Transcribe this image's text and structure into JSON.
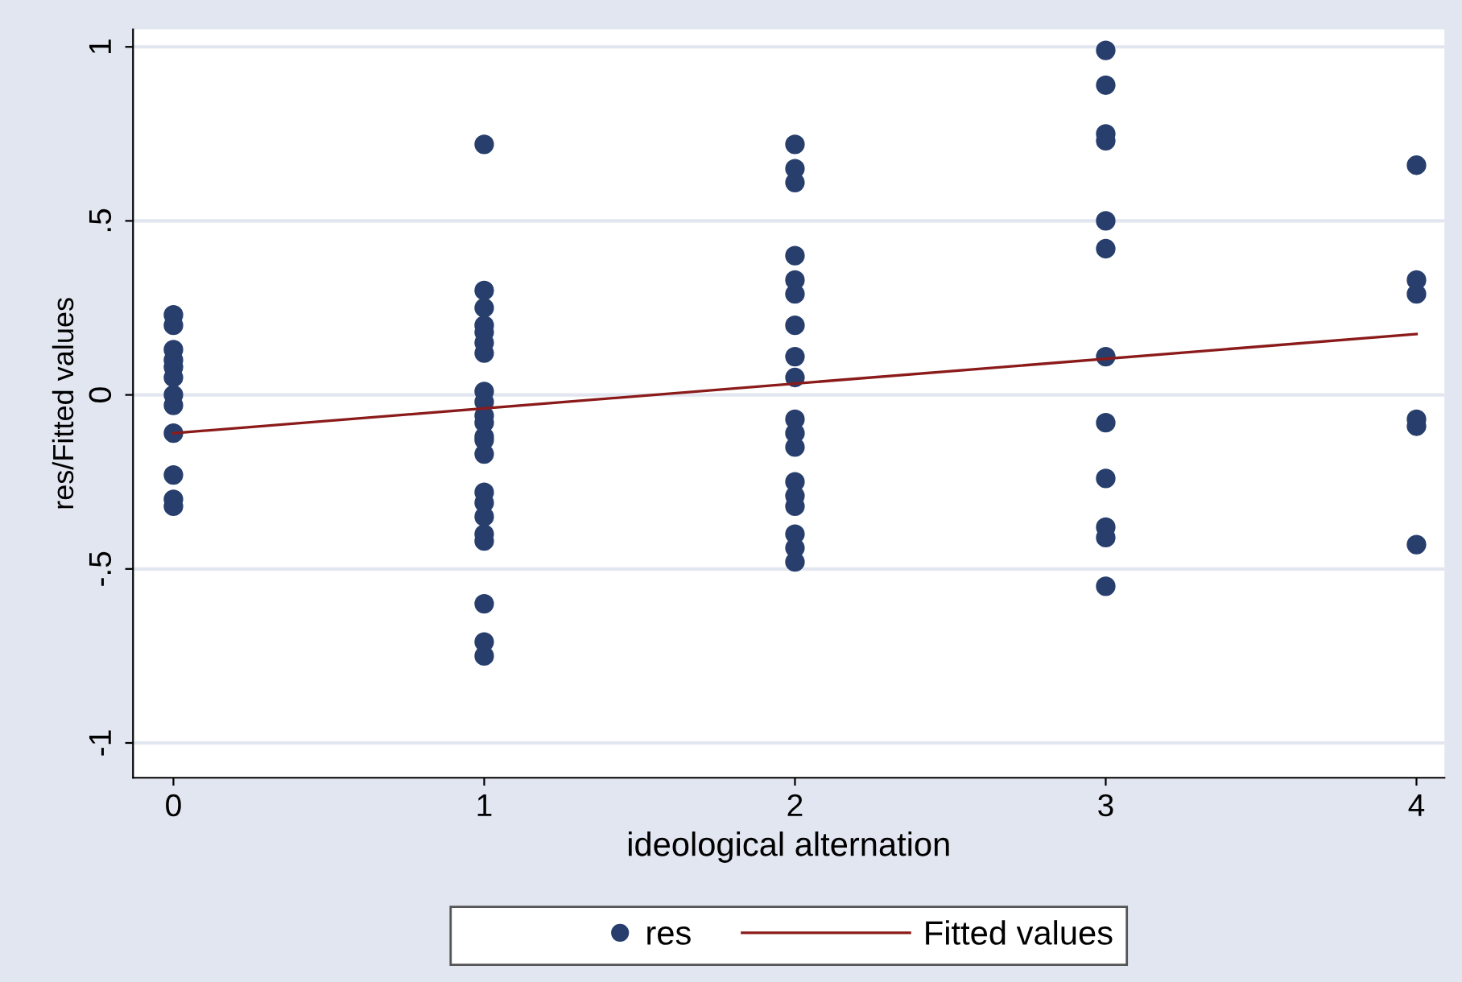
{
  "chart_data": {
    "type": "scatter",
    "xlabel": "ideological alternation",
    "ylabel": "res/Fitted values",
    "xlim": [
      -0.13,
      4.09
    ],
    "ylim": [
      -1.1,
      1.05
    ],
    "xticks": [
      0,
      1,
      2,
      3,
      4
    ],
    "yticks": [
      {
        "value": -1,
        "label": "-1"
      },
      {
        "value": -0.5,
        "label": "-.5"
      },
      {
        "value": 0,
        "label": "0"
      },
      {
        "value": 0.5,
        "label": ".5"
      },
      {
        "value": 1,
        "label": "1"
      }
    ],
    "grid": "y",
    "legend": "bottom",
    "marker": "circle",
    "series": [
      {
        "name": "res",
        "color": "#283f6d",
        "x": [
          0,
          0,
          0,
          0,
          0,
          0,
          0,
          0,
          0,
          0,
          0,
          0,
          1,
          1,
          1,
          1,
          1,
          1,
          1,
          1,
          1,
          1,
          1,
          1,
          1,
          1,
          1,
          1,
          1,
          1,
          1,
          1,
          1,
          1,
          2,
          2,
          2,
          2,
          2,
          2,
          2,
          2,
          2,
          2,
          2,
          2,
          2,
          2,
          2,
          2,
          2,
          2,
          3,
          3,
          3,
          3,
          3,
          3,
          3,
          3,
          3,
          3,
          3,
          3,
          4,
          4,
          4,
          4,
          4,
          4
        ],
        "values": [
          0.23,
          0.2,
          0.13,
          0.1,
          0.08,
          0.05,
          0.0,
          -0.03,
          -0.11,
          -0.23,
          -0.3,
          -0.32,
          0.72,
          0.3,
          0.25,
          0.2,
          0.18,
          0.15,
          0.12,
          0.01,
          -0.02,
          -0.06,
          -0.08,
          -0.12,
          -0.13,
          -0.17,
          -0.28,
          -0.31,
          -0.35,
          -0.4,
          -0.42,
          -0.6,
          -0.71,
          -0.75,
          0.72,
          0.65,
          0.61,
          0.4,
          0.33,
          0.29,
          0.2,
          0.11,
          0.05,
          -0.07,
          -0.11,
          -0.15,
          -0.25,
          -0.29,
          -0.32,
          -0.4,
          -0.44,
          -0.48,
          0.99,
          0.89,
          0.75,
          0.73,
          0.5,
          0.42,
          0.11,
          -0.08,
          -0.24,
          -0.38,
          -0.41,
          -0.55,
          0.66,
          0.33,
          0.29,
          -0.07,
          -0.09,
          -0.43
        ]
      },
      {
        "name": "Fitted values",
        "type": "line",
        "marker": "none",
        "color": "#8b1a1a",
        "x": [
          0,
          4
        ],
        "values": [
          -0.11,
          0.175
        ]
      }
    ]
  }
}
